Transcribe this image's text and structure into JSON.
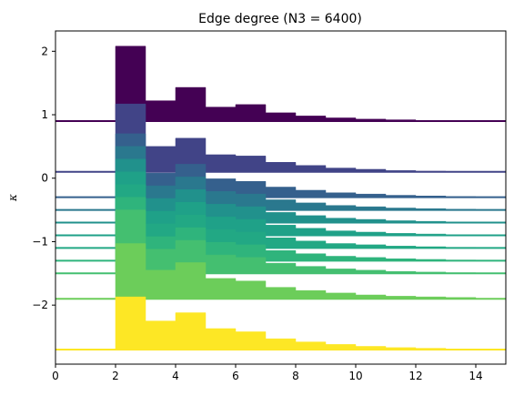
{
  "chart_data": {
    "type": "area",
    "title": "Edge degree (N3 = 6400)",
    "xlabel": "",
    "ylabel": "κ",
    "xlim": [
      0,
      15
    ],
    "ylim": [
      -2.93,
      2.32
    ],
    "xticks": [
      0,
      2,
      4,
      6,
      8,
      10,
      12,
      14
    ],
    "yticks": [
      -2,
      -1,
      0,
      1,
      2
    ],
    "ytick_labels": [
      "−2",
      "−1",
      "0",
      "1",
      "2"
    ],
    "grid": false,
    "legend": "none",
    "bin_edges": [
      2,
      3,
      4,
      5,
      6,
      7,
      8,
      9,
      10,
      11,
      12,
      13,
      14,
      15
    ],
    "base_levels": [
      0.9,
      0.1,
      -0.3,
      -0.5,
      -0.7,
      -0.9,
      -1.1,
      -1.3,
      -1.5,
      -1.9,
      -2.7
    ],
    "series": [
      {
        "color": "#440154",
        "baseline": 0.9,
        "values": [
          2.08,
          1.22,
          1.43,
          1.12,
          1.16,
          1.03,
          0.98,
          0.95,
          0.93,
          0.92,
          0.91,
          0.905,
          0.9
        ]
      },
      {
        "color": "#414487",
        "baseline": 0.1,
        "values": [
          1.17,
          0.5,
          0.63,
          0.37,
          0.35,
          0.25,
          0.2,
          0.16,
          0.14,
          0.12,
          0.11,
          0.105,
          0.1
        ]
      },
      {
        "color": "#35608d",
        "baseline": -0.3,
        "values": [
          0.7,
          0.08,
          0.22,
          -0.01,
          -0.05,
          -0.14,
          -0.19,
          -0.23,
          -0.25,
          -0.27,
          -0.28,
          -0.29,
          -0.3
        ]
      },
      {
        "color": "#2a788e",
        "baseline": -0.5,
        "values": [
          0.5,
          -0.12,
          0.02,
          -0.21,
          -0.25,
          -0.34,
          -0.39,
          -0.43,
          -0.45,
          -0.47,
          -0.48,
          -0.49,
          -0.5
        ]
      },
      {
        "color": "#21918c",
        "baseline": -0.7,
        "values": [
          0.3,
          -0.32,
          -0.18,
          -0.41,
          -0.45,
          -0.54,
          -0.59,
          -0.63,
          -0.65,
          -0.67,
          -0.68,
          -0.69,
          -0.7
        ]
      },
      {
        "color": "#1fa188",
        "baseline": -0.9,
        "values": [
          0.1,
          -0.52,
          -0.38,
          -0.61,
          -0.65,
          -0.74,
          -0.79,
          -0.83,
          -0.85,
          -0.87,
          -0.88,
          -0.89,
          -0.9
        ]
      },
      {
        "color": "#22a884",
        "baseline": -1.1,
        "values": [
          -0.1,
          -0.72,
          -0.58,
          -0.81,
          -0.85,
          -0.94,
          -0.99,
          -1.03,
          -1.05,
          -1.07,
          -1.08,
          -1.09,
          -1.1
        ]
      },
      {
        "color": "#2fb47c",
        "baseline": -1.3,
        "values": [
          -0.3,
          -0.92,
          -0.78,
          -1.01,
          -1.05,
          -1.14,
          -1.19,
          -1.23,
          -1.25,
          -1.27,
          -1.28,
          -1.29,
          -1.3
        ]
      },
      {
        "color": "#44bf70",
        "baseline": -1.5,
        "values": [
          -0.5,
          -1.12,
          -0.98,
          -1.21,
          -1.25,
          -1.34,
          -1.39,
          -1.43,
          -1.45,
          -1.47,
          -1.48,
          -1.49,
          -1.5
        ]
      },
      {
        "color": "#6ccd5a",
        "baseline": -1.9,
        "values": [
          -1.03,
          -1.45,
          -1.33,
          -1.58,
          -1.62,
          -1.72,
          -1.77,
          -1.81,
          -1.84,
          -1.86,
          -1.87,
          -1.88,
          -1.9
        ]
      },
      {
        "color": "#fde725",
        "baseline": -2.7,
        "values": [
          -1.87,
          -2.25,
          -2.12,
          -2.37,
          -2.42,
          -2.53,
          -2.58,
          -2.62,
          -2.65,
          -2.67,
          -2.68,
          -2.69,
          -2.7
        ]
      }
    ]
  }
}
